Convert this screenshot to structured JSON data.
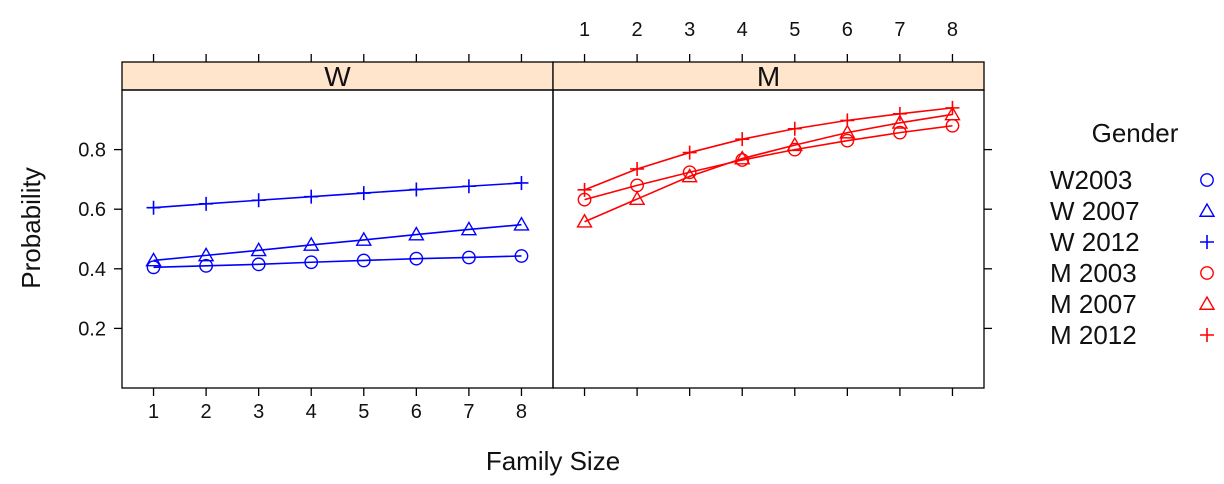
{
  "chart_data": {
    "type": "line",
    "xlabel": "Family Size",
    "ylabel": "Probability",
    "x": [
      1,
      2,
      3,
      4,
      5,
      6,
      7,
      8
    ],
    "xlim": [
      0.4,
      8.6
    ],
    "ylim": [
      0.0,
      1.0
    ],
    "y_ticks": [
      0.2,
      0.4,
      0.6,
      0.8
    ],
    "y_tick_labels": [
      "0.2",
      "0.4",
      "0.6",
      "0.8"
    ],
    "x_tick_labels": [
      "1",
      "2",
      "3",
      "4",
      "5",
      "6",
      "7",
      "8"
    ],
    "panels": [
      {
        "strip": "W",
        "strip_color": "#FFE5CC",
        "series": [
          {
            "name": "W2003",
            "marker": "circle",
            "color": "#0000FF",
            "values": [
              0.405,
              0.41,
              0.415,
              0.422,
              0.428,
              0.434,
              0.438,
              0.443
            ]
          },
          {
            "name": "W 2007",
            "marker": "triangle",
            "color": "#0000FF",
            "values": [
              0.428,
              0.445,
              0.462,
              0.48,
              0.497,
              0.515,
              0.532,
              0.548
            ]
          },
          {
            "name": "W 2012",
            "marker": "plus",
            "color": "#0000FF",
            "values": [
              0.605,
              0.618,
              0.63,
              0.642,
              0.654,
              0.666,
              0.677,
              0.688
            ]
          }
        ]
      },
      {
        "strip": "M",
        "strip_color": "#FFE5CC",
        "series": [
          {
            "name": "M 2003",
            "marker": "circle",
            "color": "#FF0000",
            "values": [
              0.632,
              0.68,
              0.724,
              0.765,
              0.8,
              0.83,
              0.857,
              0.88
            ]
          },
          {
            "name": "M 2007",
            "marker": "triangle",
            "color": "#FF0000",
            "values": [
              0.558,
              0.634,
              0.71,
              0.77,
              0.815,
              0.857,
              0.89,
              0.918
            ]
          },
          {
            "name": "M 2012",
            "marker": "plus",
            "color": "#FF0000",
            "values": [
              0.665,
              0.735,
              0.79,
              0.835,
              0.87,
              0.898,
              0.92,
              0.94
            ]
          }
        ]
      }
    ],
    "legend": {
      "title": "Gender",
      "position": "right",
      "entries": [
        {
          "label": "W2003",
          "marker": "circle",
          "color": "#0000FF"
        },
        {
          "label": "W 2007",
          "marker": "triangle",
          "color": "#0000FF"
        },
        {
          "label": "W 2012",
          "marker": "plus",
          "color": "#0000FF"
        },
        {
          "label": "M 2003",
          "marker": "circle",
          "color": "#FF0000"
        },
        {
          "label": "M 2007",
          "marker": "triangle",
          "color": "#FF0000"
        },
        {
          "label": "M 2012",
          "marker": "plus",
          "color": "#FF0000"
        }
      ]
    }
  }
}
